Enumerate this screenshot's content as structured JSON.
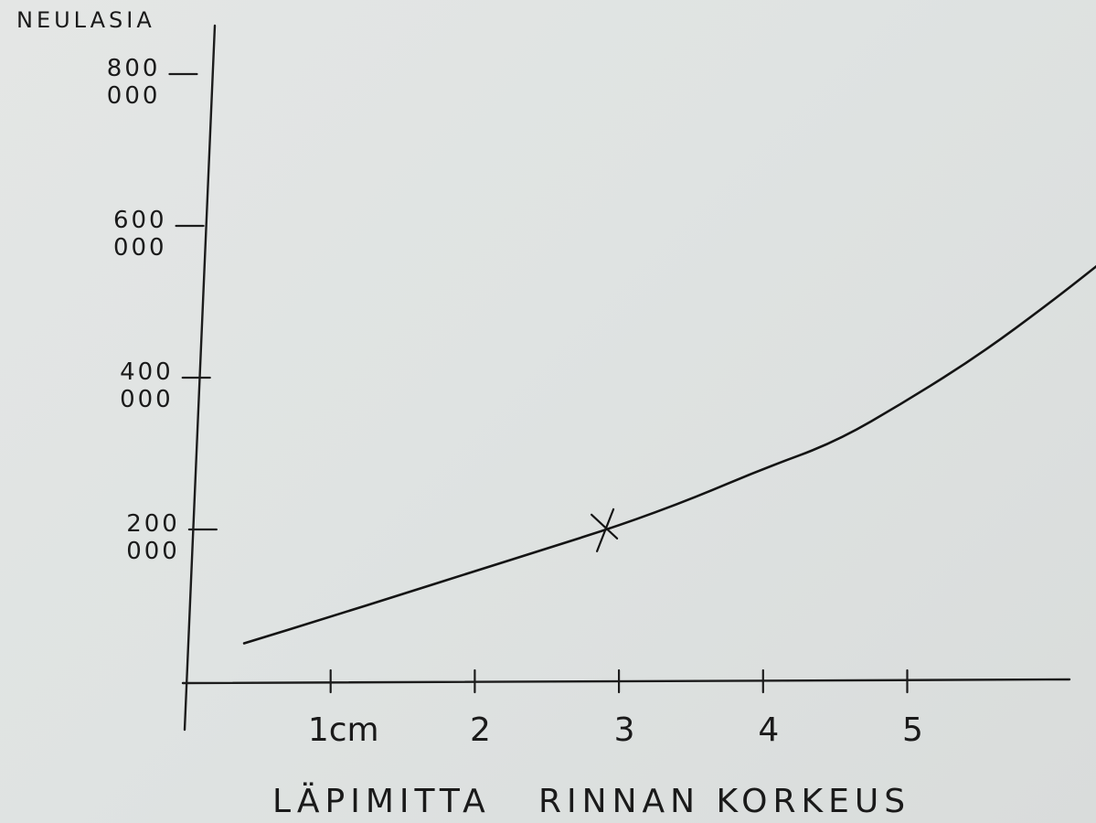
{
  "chart_data": {
    "type": "line",
    "ylabel": "NEULASIA",
    "xlabel": "LÄPIMITTA   RINNAN KORKEUS",
    "x_ticks": [
      {
        "value": 1,
        "label": "1cm"
      },
      {
        "value": 2,
        "label": "2"
      },
      {
        "value": 3,
        "label": "3"
      },
      {
        "value": 4,
        "label": "4"
      },
      {
        "value": 5,
        "label": "5"
      }
    ],
    "y_ticks": [
      {
        "value": 200000,
        "label_line1": "200",
        "label_line2": "000"
      },
      {
        "value": 400000,
        "label_line1": "400",
        "label_line2": "000"
      },
      {
        "value": 600000,
        "label_line1": "600",
        "label_line2": "000"
      },
      {
        "value": 800000,
        "label_line1": "800",
        "label_line2": "000"
      }
    ],
    "xlim": [
      0,
      6.4
    ],
    "ylim": [
      0,
      860000
    ],
    "series": [
      {
        "x": [
          0.4,
          1.0,
          1.5,
          2.0,
          2.5,
          3.0,
          3.5,
          4.0,
          4.5,
          5.0,
          5.5,
          6.0,
          6.4
        ],
        "y": [
          50000,
          85000,
          115000,
          145000,
          175000,
          205000,
          240000,
          280000,
          315000,
          370000,
          430000,
          500000,
          560000
        ]
      }
    ],
    "marked_point": {
      "x": 3.0,
      "y": 205000,
      "symbol": "x"
    },
    "grid": false,
    "legend": "none"
  }
}
